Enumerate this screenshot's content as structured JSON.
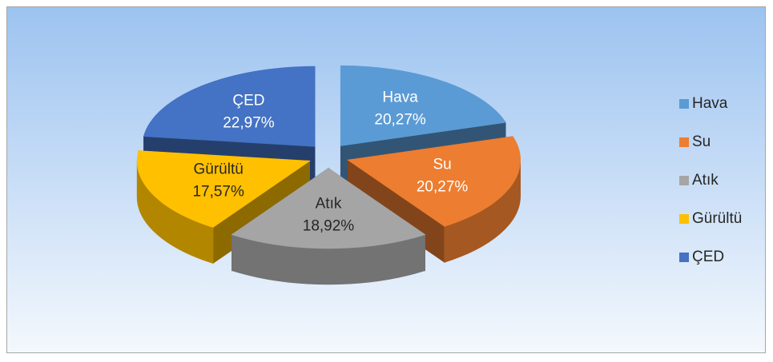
{
  "chart_data": {
    "type": "pie3d",
    "categories": [
      "Hava",
      "Su",
      "Atık",
      "Gürültü",
      "ÇED"
    ],
    "values": [
      20.27,
      20.27,
      18.92,
      17.57,
      22.97
    ],
    "value_labels": [
      "20,27%",
      "20,27%",
      "18,92%",
      "17,57%",
      "22,97%"
    ],
    "colors": [
      "#5b9bd5",
      "#ed7d31",
      "#a5a5a5",
      "#ffc000",
      "#4472c4"
    ],
    "legend": "right"
  }
}
